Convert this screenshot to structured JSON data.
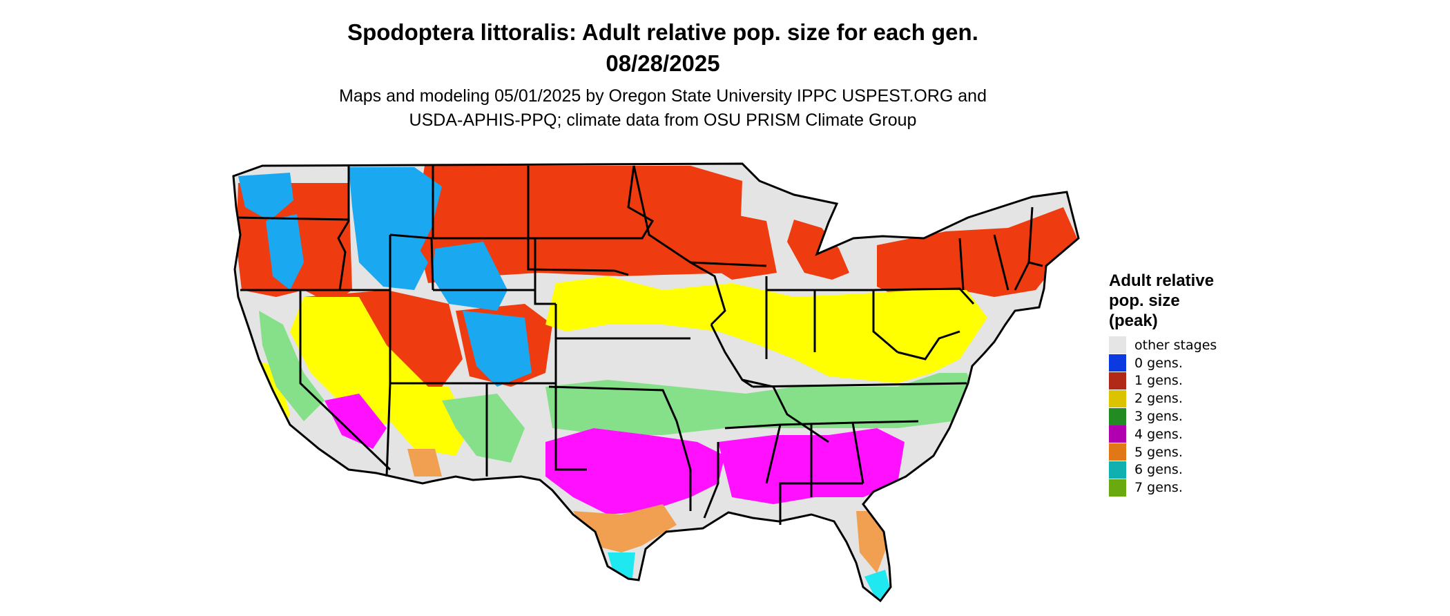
{
  "title": {
    "line1": "Spodoptera littoralis: Adult relative pop. size for each gen.",
    "line2": "08/28/2025"
  },
  "subtitle": {
    "line1": "Maps and modeling 05/01/2025 by Oregon State University IPPC USPEST.ORG and",
    "line2": "USDA-APHIS-PPQ; climate data from OSU PRISM Climate Group"
  },
  "legend": {
    "title_lines": [
      "Adult relative",
      "pop. size",
      "(peak)"
    ],
    "items": [
      {
        "label": "other stages",
        "color": "#e5e5e5"
      },
      {
        "label": "0 gens.",
        "color": "#0b3be0"
      },
      {
        "label": "1 gens.",
        "color": "#b02a17"
      },
      {
        "label": "2 gens.",
        "color": "#dcc300"
      },
      {
        "label": "3 gens.",
        "color": "#228b22"
      },
      {
        "label": "4 gens.",
        "color": "#b000b0"
      },
      {
        "label": "5 gens.",
        "color": "#e07818"
      },
      {
        "label": "6 gens.",
        "color": "#10b0b0"
      },
      {
        "label": "7 gens.",
        "color": "#6aaa10"
      }
    ]
  },
  "map_colors": {
    "base": "#e4e4e4",
    "zone_0_gens": "#1aa8f0",
    "zone_1_gens": "#ef3b10",
    "zone_2_gens": "#ffff00",
    "zone_3_gens": "#86e08a",
    "zone_4_gens": "#ff10ff",
    "zone_5_gens": "#f0a050",
    "zone_6_gens": "#20e8f0",
    "border": "#000000"
  }
}
